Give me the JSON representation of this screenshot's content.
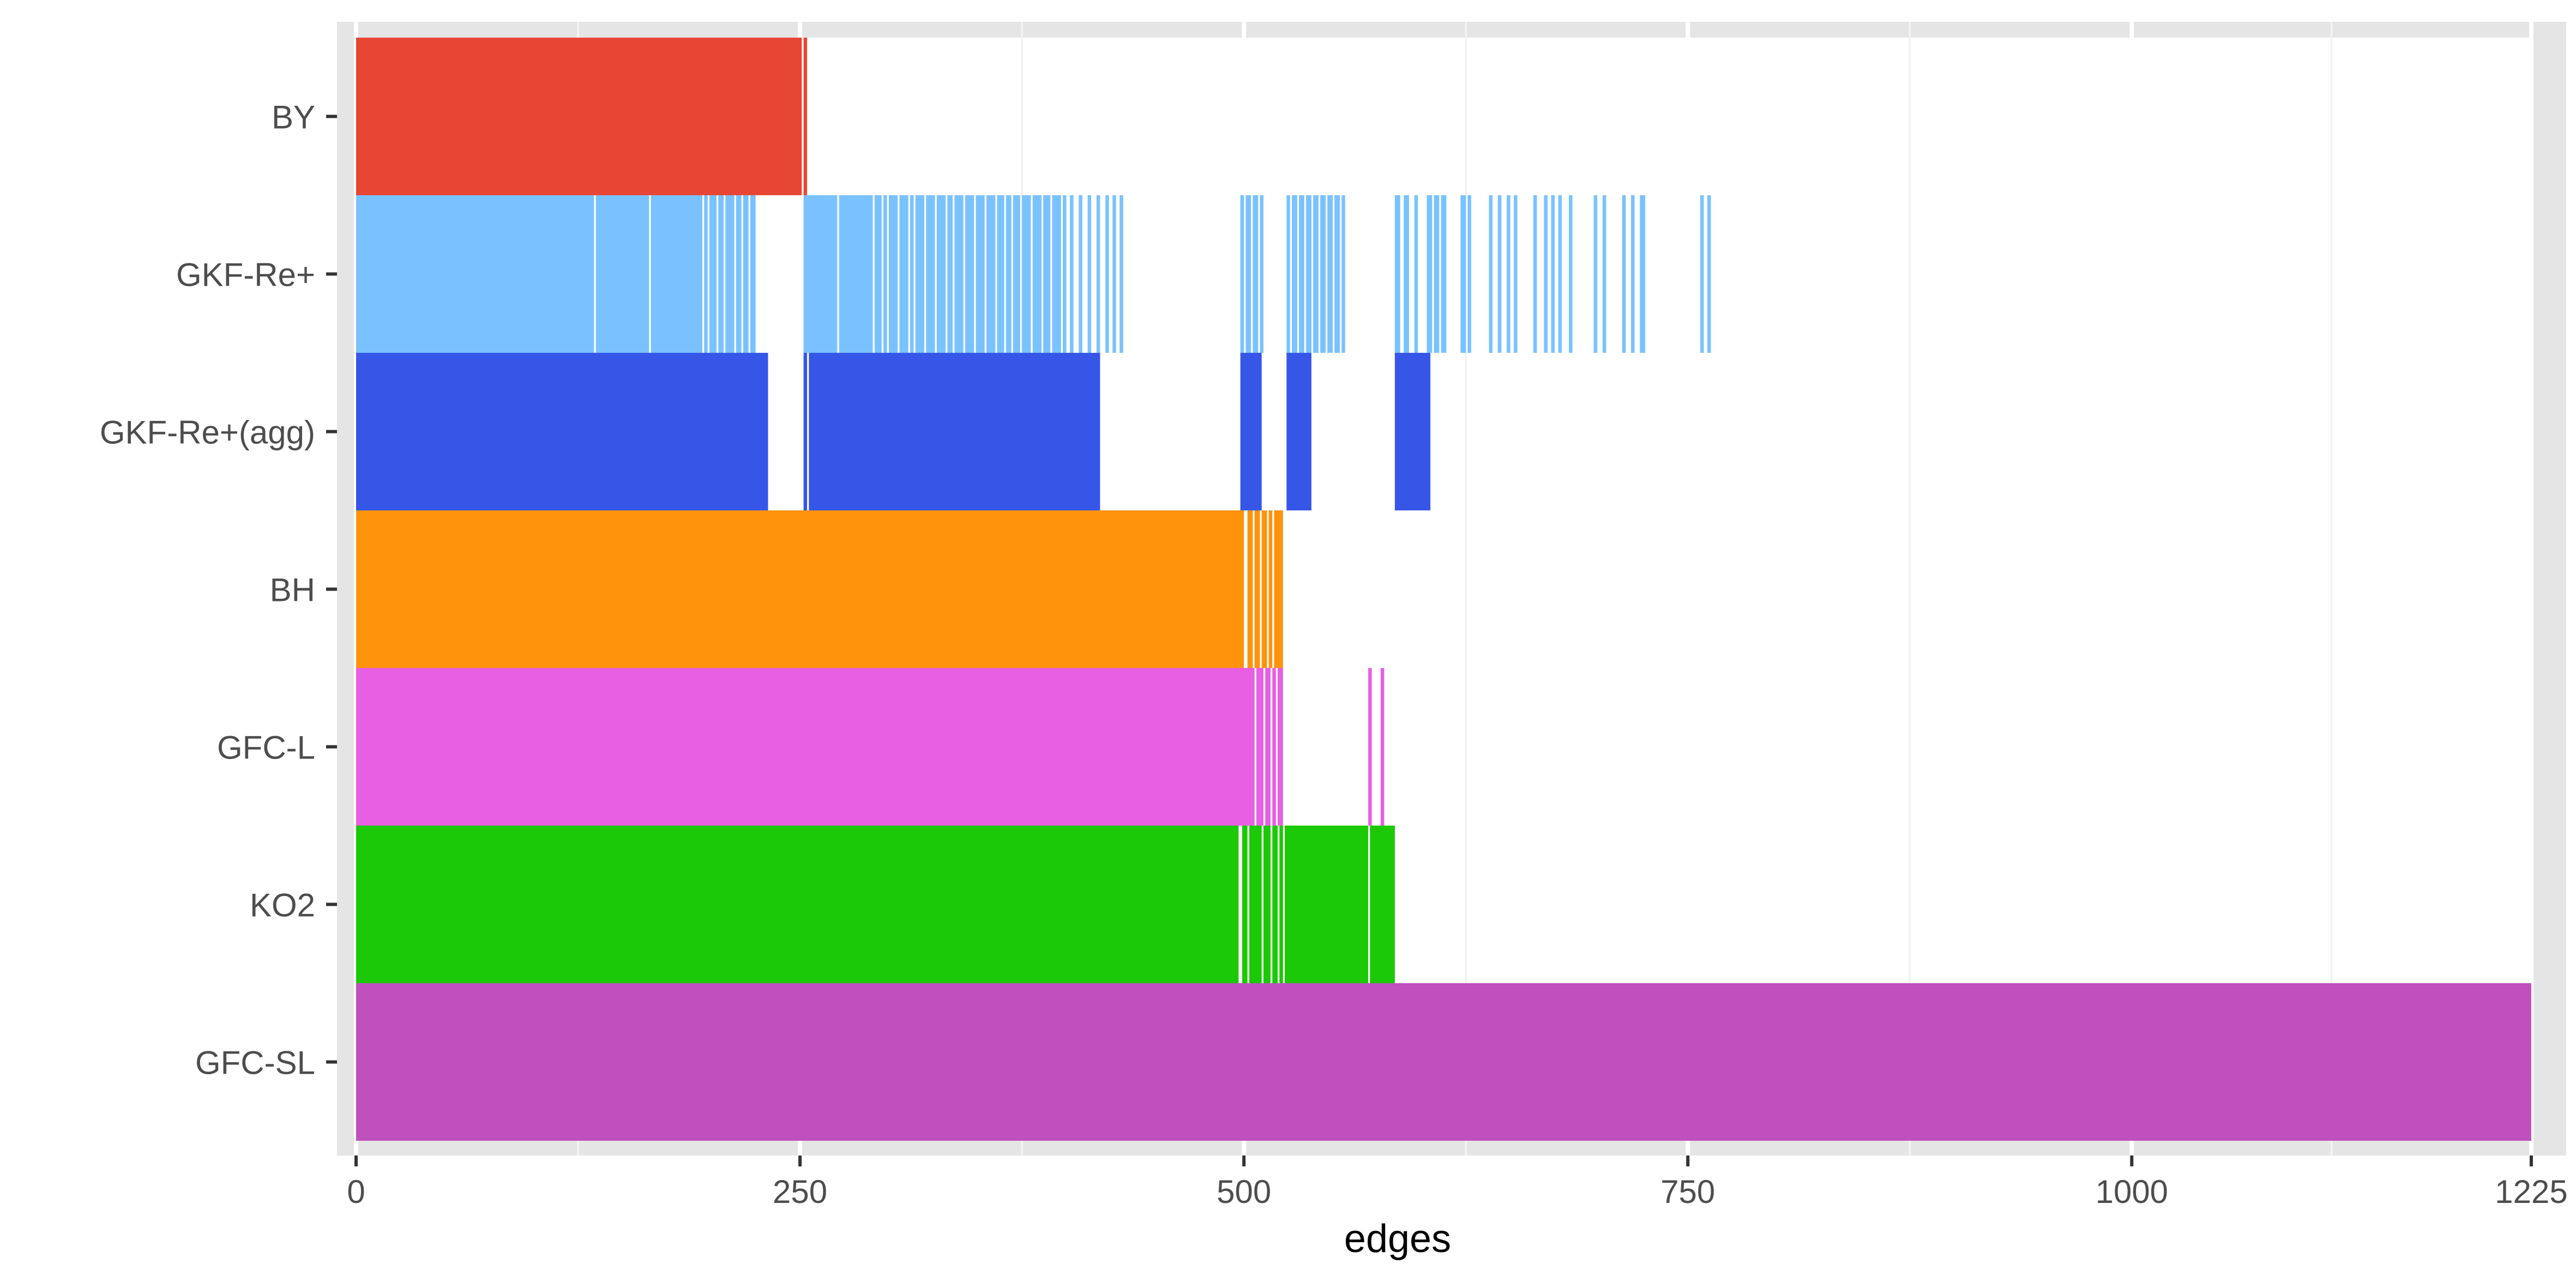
{
  "chart_data": {
    "type": "bar",
    "title": "",
    "xlabel": "edges",
    "ylabel": "",
    "xlim": [
      0,
      1225
    ],
    "x_ticks": [
      "0",
      "250",
      "500",
      "750",
      "1000",
      "1225"
    ],
    "x_tick_values": [
      0,
      250,
      500,
      750,
      1000,
      1225
    ],
    "minor_grid_x": [
      125,
      375,
      625,
      875,
      1112.5
    ],
    "grid": true,
    "legend": "none",
    "categories": [
      "BY",
      "GKF-Re+",
      "GKF-Re+(agg)",
      "BH",
      "GFC-L",
      "KO2",
      "GFC-SL"
    ],
    "colors": [
      "#E84634",
      "#79C2FF",
      "#3656E8",
      "#FF930C",
      "#E75FE2",
      "#1CC906",
      "#BF50BD"
    ],
    "series": [
      {
        "name": "BY",
        "segments": [
          [
            0,
            251
          ],
          [
            252,
            254
          ]
        ]
      },
      {
        "name": "GKF-Re+",
        "segments": [
          [
            0,
            134
          ],
          [
            135,
            165
          ],
          [
            166,
            195
          ],
          [
            196,
            198
          ],
          [
            199,
            203
          ],
          [
            204,
            207
          ],
          [
            208,
            213
          ],
          [
            214,
            217
          ],
          [
            218,
            221
          ],
          [
            222,
            225
          ],
          [
            252,
            271
          ],
          [
            272,
            291
          ],
          [
            292,
            296
          ],
          [
            297,
            299
          ],
          [
            300,
            305
          ],
          [
            306,
            311
          ],
          [
            312,
            314
          ],
          [
            315,
            320
          ],
          [
            321,
            326
          ],
          [
            327,
            332
          ],
          [
            333,
            336
          ],
          [
            337,
            342
          ],
          [
            343,
            348
          ],
          [
            349,
            354
          ],
          [
            355,
            360
          ],
          [
            361,
            365
          ],
          [
            366,
            369
          ],
          [
            370,
            374
          ],
          [
            375,
            380
          ],
          [
            381,
            386
          ],
          [
            387,
            391
          ],
          [
            392,
            397
          ],
          [
            398,
            400
          ],
          [
            402,
            404
          ],
          [
            407,
            409
          ],
          [
            412,
            414
          ],
          [
            417,
            419
          ],
          [
            422,
            424
          ],
          [
            426,
            428
          ],
          [
            430,
            432
          ],
          [
            498,
            500
          ],
          [
            501,
            504
          ],
          [
            505,
            508
          ],
          [
            509,
            511
          ],
          [
            524,
            526
          ],
          [
            527,
            530
          ],
          [
            531,
            534
          ],
          [
            535,
            538
          ],
          [
            539,
            542
          ],
          [
            543,
            546
          ],
          [
            547,
            550
          ],
          [
            551,
            554
          ],
          [
            555,
            557
          ],
          [
            585,
            588
          ],
          [
            590,
            593
          ],
          [
            596,
            598
          ],
          [
            603,
            606
          ],
          [
            607,
            610
          ],
          [
            611,
            614
          ],
          [
            622,
            625
          ],
          [
            626,
            628
          ],
          [
            638,
            640
          ],
          [
            643,
            645
          ],
          [
            648,
            650
          ],
          [
            652,
            654
          ],
          [
            663,
            665
          ],
          [
            669,
            671
          ],
          [
            673,
            675
          ],
          [
            677,
            679
          ],
          [
            683,
            685
          ],
          [
            697,
            699
          ],
          [
            702,
            704
          ],
          [
            713,
            715
          ],
          [
            718,
            720
          ],
          [
            723,
            726
          ],
          [
            757,
            759
          ],
          [
            761,
            763
          ]
        ]
      },
      {
        "name": "GKF-Re+(agg)",
        "segments": [
          [
            0,
            232
          ],
          [
            252,
            254
          ],
          [
            255,
            419
          ],
          [
            498,
            510
          ],
          [
            524,
            538
          ],
          [
            585,
            605
          ]
        ]
      },
      {
        "name": "BH",
        "segments": [
          [
            0,
            500
          ],
          [
            502,
            505
          ],
          [
            506,
            509
          ],
          [
            510,
            513
          ],
          [
            514,
            516
          ],
          [
            517,
            522
          ]
        ]
      },
      {
        "name": "GFC-L",
        "segments": [
          [
            0,
            506
          ],
          [
            507,
            511
          ],
          [
            512,
            515
          ],
          [
            516,
            518
          ],
          [
            519,
            522
          ],
          [
            570,
            572
          ],
          [
            577,
            579
          ]
        ]
      },
      {
        "name": "KO2",
        "segments": [
          [
            0,
            497
          ],
          [
            499,
            502
          ],
          [
            503,
            510
          ],
          [
            511,
            515
          ],
          [
            516,
            519
          ],
          [
            520,
            522
          ],
          [
            523,
            570
          ],
          [
            571,
            585
          ]
        ]
      },
      {
        "name": "GFC-SL",
        "segments": [
          [
            0,
            1225
          ]
        ]
      }
    ]
  }
}
